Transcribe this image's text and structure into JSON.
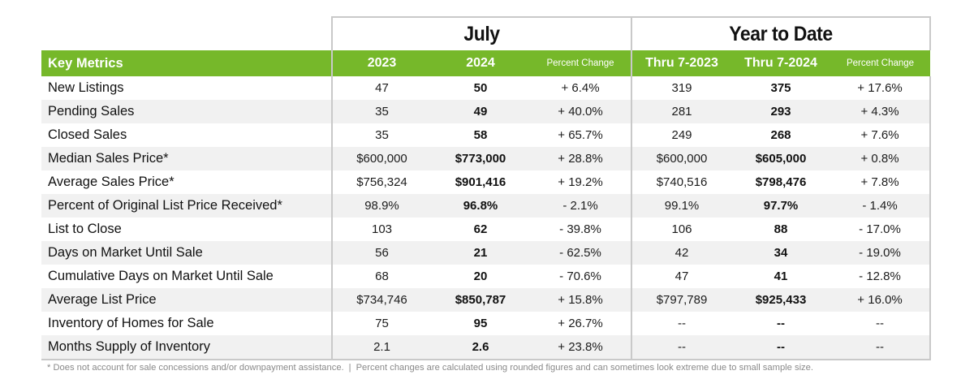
{
  "table": {
    "groups": [
      {
        "label": "July"
      },
      {
        "label": "Year to Date"
      }
    ],
    "headers": {
      "metric": "Key Metrics",
      "columns": [
        "2023",
        "2024",
        "Percent Change",
        "Thru 7-2023",
        "Thru 7-2024",
        "Percent Change"
      ]
    },
    "rows": [
      {
        "metric": "New Listings",
        "values": [
          "47",
          "50",
          "+ 6.4%",
          "319",
          "375",
          "+ 17.6%"
        ]
      },
      {
        "metric": "Pending Sales",
        "values": [
          "35",
          "49",
          "+ 40.0%",
          "281",
          "293",
          "+ 4.3%"
        ]
      },
      {
        "metric": "Closed Sales",
        "values": [
          "35",
          "58",
          "+ 65.7%",
          "249",
          "268",
          "+ 7.6%"
        ]
      },
      {
        "metric": "Median Sales Price*",
        "values": [
          "$600,000",
          "$773,000",
          "+ 28.8%",
          "$600,000",
          "$605,000",
          "+ 0.8%"
        ]
      },
      {
        "metric": "Average Sales Price*",
        "values": [
          "$756,324",
          "$901,416",
          "+ 19.2%",
          "$740,516",
          "$798,476",
          "+ 7.8%"
        ]
      },
      {
        "metric": "Percent of Original List Price Received*",
        "values": [
          "98.9%",
          "96.8%",
          "- 2.1%",
          "99.1%",
          "97.7%",
          "- 1.4%"
        ]
      },
      {
        "metric": "List to Close",
        "values": [
          "103",
          "62",
          "- 39.8%",
          "106",
          "88",
          "- 17.0%"
        ]
      },
      {
        "metric": "Days on Market Until Sale",
        "values": [
          "56",
          "21",
          "- 62.5%",
          "42",
          "34",
          "- 19.0%"
        ]
      },
      {
        "metric": "Cumulative Days on Market Until Sale",
        "values": [
          "68",
          "20",
          "- 70.6%",
          "47",
          "41",
          "- 12.8%"
        ]
      },
      {
        "metric": "Average List Price",
        "values": [
          "$734,746",
          "$850,787",
          "+ 15.8%",
          "$797,789",
          "$925,433",
          "+ 16.0%"
        ]
      },
      {
        "metric": "Inventory of Homes for Sale",
        "values": [
          "75",
          "95",
          "+ 26.7%",
          "--",
          "--",
          "--"
        ]
      },
      {
        "metric": "Months Supply of Inventory",
        "values": [
          "2.1",
          "2.6",
          "+ 23.8%",
          "--",
          "--",
          "--"
        ]
      }
    ]
  },
  "footnote": {
    "part1": "* Does not account for sale concessions and/or downpayment assistance.",
    "separator": "|",
    "part2": "Percent changes are calculated using rounded figures and can sometimes look extreme due to small sample size."
  },
  "colors": {
    "header_green": "#76b82a",
    "border_gray": "#c9c9c9",
    "band_gray": "#f1f1f1"
  }
}
